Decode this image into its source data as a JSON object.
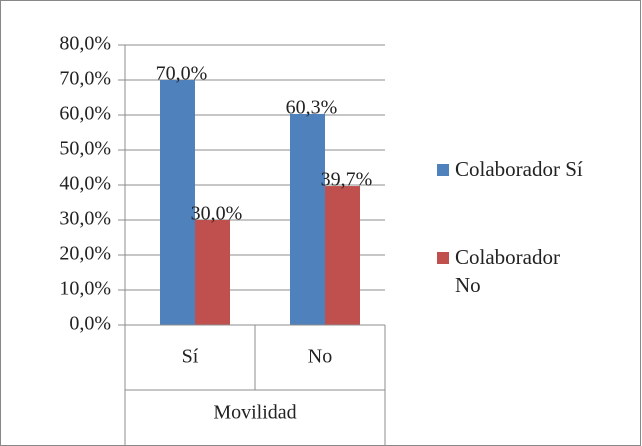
{
  "chart_data": {
    "type": "bar",
    "categories": [
      "Sí",
      "No"
    ],
    "xlabel": "Movilidad",
    "series": [
      {
        "name": "Colaborador Sí",
        "color": "#4f81bd",
        "values": [
          70.0,
          60.3
        ],
        "value_labels": [
          "70,0%",
          "60,3%"
        ]
      },
      {
        "name": "Colaborador No",
        "color": "#c0504d",
        "values": [
          30.0,
          39.7
        ],
        "value_labels": [
          "30,0%",
          "39,7%"
        ]
      }
    ],
    "ylim": [
      0,
      80
    ],
    "yticks": [
      {
        "value": 0,
        "label": "0,0%"
      },
      {
        "value": 10,
        "label": "10,0%"
      },
      {
        "value": 20,
        "label": "20,0%"
      },
      {
        "value": 30,
        "label": "30,0%"
      },
      {
        "value": 40,
        "label": "40,0%"
      },
      {
        "value": 50,
        "label": "50,0%"
      },
      {
        "value": 60,
        "label": "60,0%"
      },
      {
        "value": 70,
        "label": "70,0%"
      },
      {
        "value": 80,
        "label": "80,0%"
      }
    ],
    "grid": true,
    "legend": "right"
  }
}
